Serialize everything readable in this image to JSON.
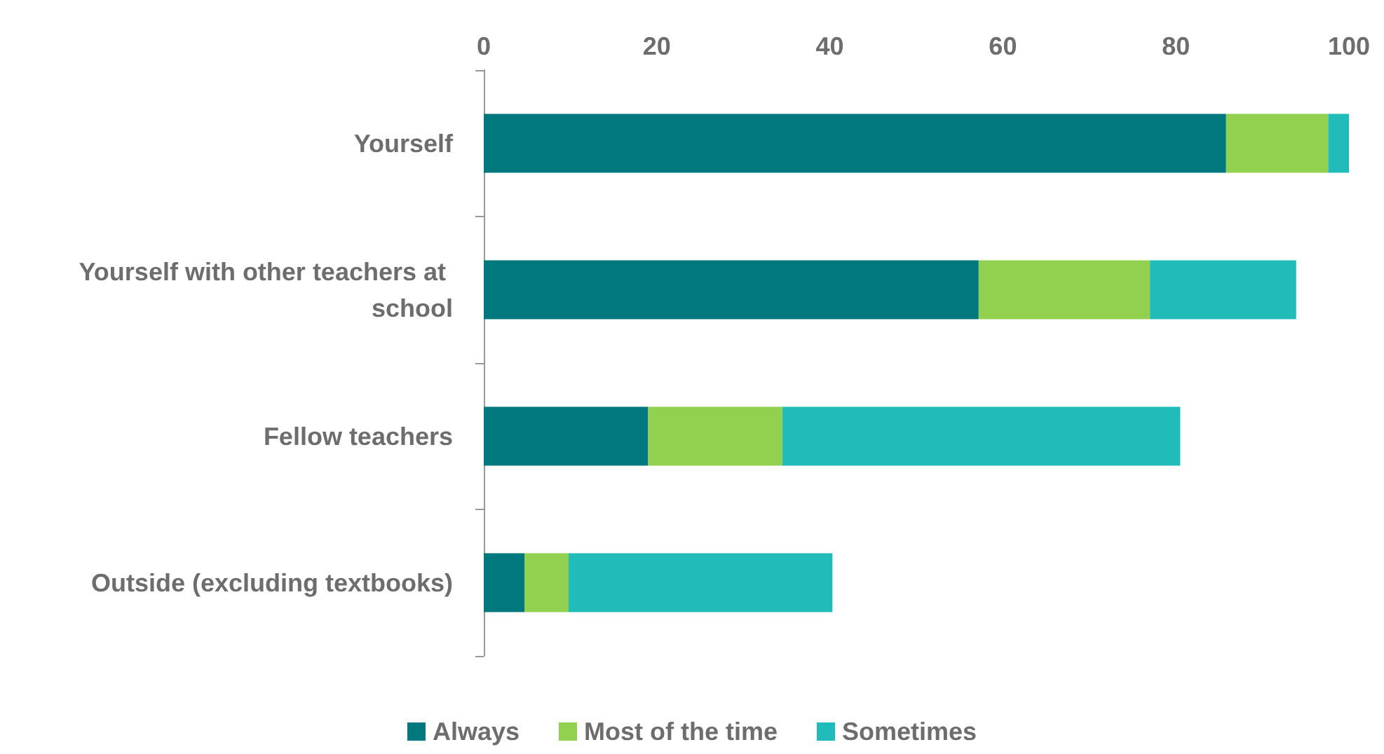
{
  "chart_data": {
    "type": "bar",
    "orientation": "horizontal",
    "stacked": true,
    "categories": [
      "Yourself",
      "Yourself with other teachers at school",
      "Fellow teachers",
      "Outside (excluding textbooks)"
    ],
    "series": [
      {
        "name": "Always",
        "color": "#00787e",
        "values": [
          85.8,
          57.2,
          19.0,
          4.7
        ]
      },
      {
        "name": "Most of the time",
        "color": "#92d050",
        "values": [
          11.8,
          19.8,
          15.5,
          5.1
        ]
      },
      {
        "name": "Sometimes",
        "color": "#21bbb9",
        "values": [
          2.4,
          16.9,
          46.0,
          30.5
        ]
      }
    ],
    "xlim": [
      0,
      100
    ],
    "xticks": [
      0,
      20,
      40,
      60,
      80,
      100
    ],
    "grid": false,
    "legend": "bottom"
  }
}
